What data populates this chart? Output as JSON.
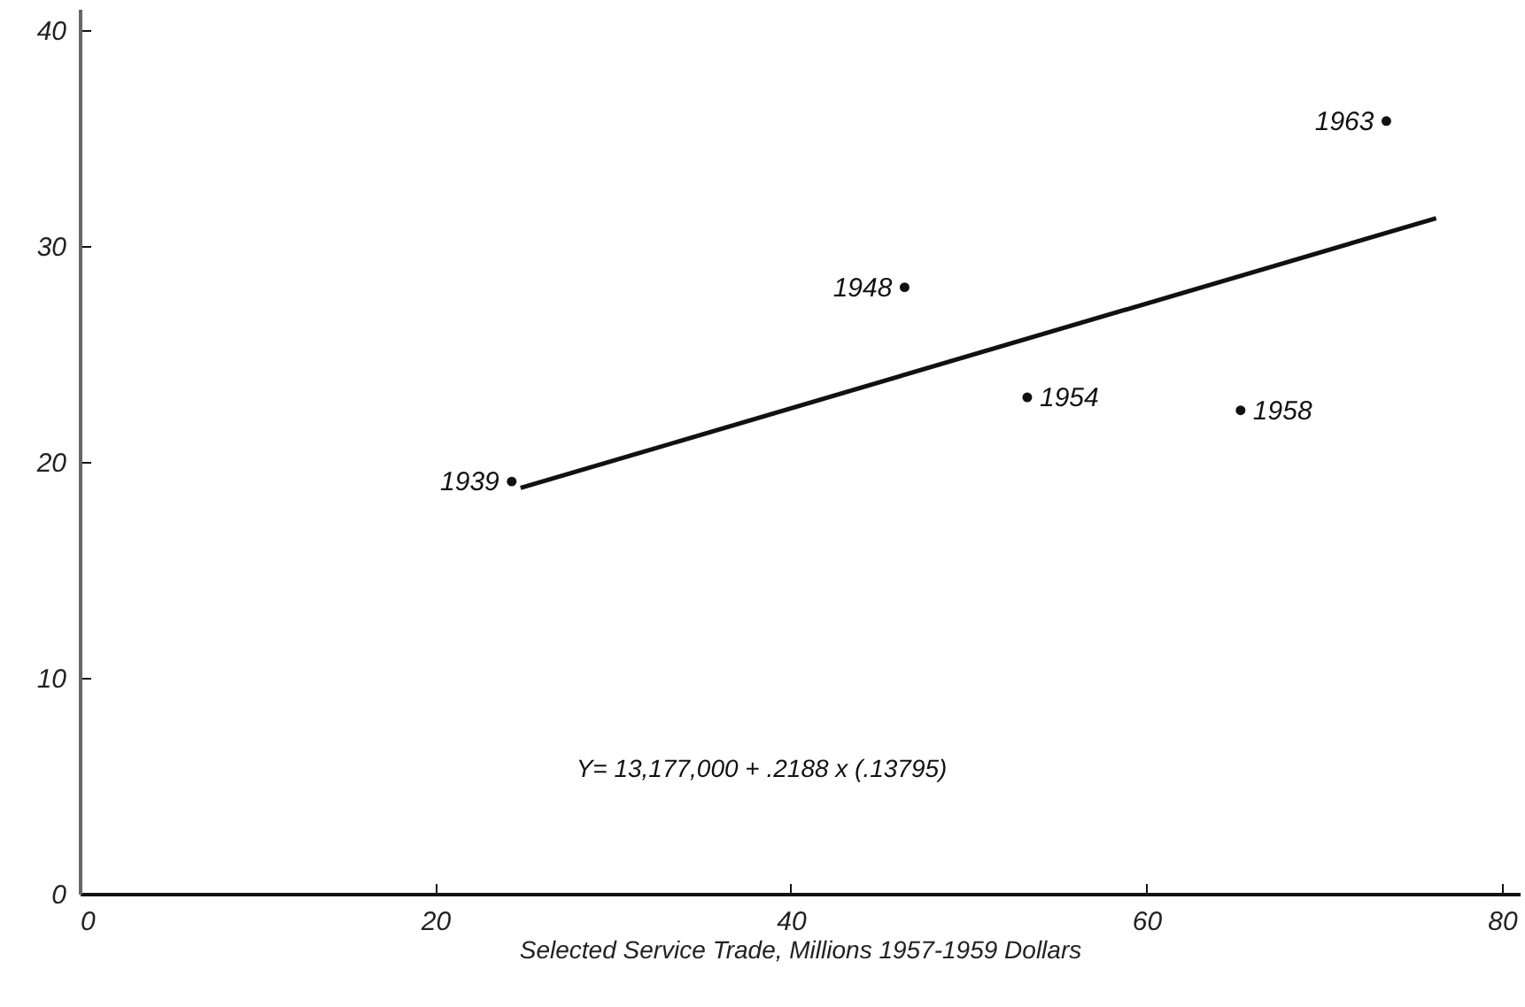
{
  "chart_data": {
    "type": "scatter",
    "xlabel": "Selected Service Trade, Millions 1957-1959 Dollars",
    "xlim": [
      0,
      81
    ],
    "xticks": [
      0,
      20,
      40,
      60,
      80
    ],
    "ylim": [
      0,
      41
    ],
    "yticks": [
      0,
      10,
      20,
      30,
      40
    ],
    "grid": false,
    "series": [
      {
        "marker": "circle",
        "color": "#111111",
        "x": [
          24.3,
          46.4,
          53.3,
          65.3,
          73.5
        ],
        "values": [
          19.1,
          28.1,
          23.0,
          22.4,
          35.8
        ]
      },
      {
        "type": "line",
        "marker": "none",
        "color": "#111111",
        "x": [
          24.8,
          76.3
        ],
        "values": [
          18.8,
          31.3
        ]
      }
    ],
    "annotations": [
      {
        "text": "1939",
        "x": 24.3,
        "y": 19.1
      },
      {
        "text": "1948",
        "x": 46.4,
        "y": 28.1
      },
      {
        "text": "1954",
        "x": 53.3,
        "y": 23.0
      },
      {
        "text": "1958",
        "x": 65.3,
        "y": 22.4
      },
      {
        "text": "1963",
        "x": 73.5,
        "y": 35.8
      },
      "Y= 13,177,000 + .2188 x (.13795)"
    ]
  }
}
